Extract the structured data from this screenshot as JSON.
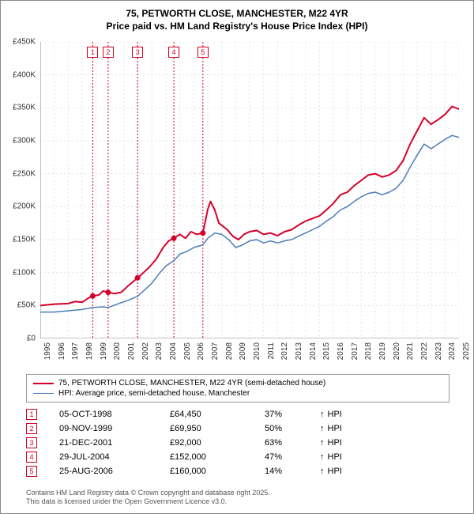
{
  "title_line1": "75, PETWORTH CLOSE, MANCHESTER, M22 4YR",
  "title_line2": "Price paid vs. HM Land Registry's House Price Index (HPI)",
  "chart": {
    "type": "line",
    "background_color": "#ffffff",
    "grid_color": "#e3e3e3",
    "grid_dash": "2,3",
    "axis_color": "#808080",
    "ylim": [
      0,
      450000
    ],
    "ytick_step": 50000,
    "y_ticks": [
      "£0",
      "£50K",
      "£100K",
      "£150K",
      "£200K",
      "£250K",
      "£300K",
      "£350K",
      "£400K",
      "£450K"
    ],
    "xlim": [
      1995,
      2025
    ],
    "x_ticks": [
      "1995",
      "1996",
      "1997",
      "1998",
      "1999",
      "2000",
      "2001",
      "2002",
      "2003",
      "2004",
      "2005",
      "2006",
      "2007",
      "2008",
      "2009",
      "2010",
      "2011",
      "2012",
      "2013",
      "2014",
      "2015",
      "2016",
      "2017",
      "2018",
      "2019",
      "2020",
      "2021",
      "2022",
      "2023",
      "2024",
      "2025"
    ],
    "marker_vlines": [
      {
        "year": 1998.76,
        "label": "1"
      },
      {
        "year": 1999.86,
        "label": "2"
      },
      {
        "year": 2001.97,
        "label": "3"
      },
      {
        "year": 2004.57,
        "label": "4"
      },
      {
        "year": 2006.65,
        "label": "5"
      }
    ],
    "marker_vline_color": "#cc0033",
    "series": [
      {
        "name": "price_paid",
        "color": "#d4002a",
        "width": 2,
        "points": [
          [
            1995.0,
            50
          ],
          [
            1996.0,
            52
          ],
          [
            1997.0,
            53
          ],
          [
            1997.5,
            56
          ],
          [
            1998.0,
            55
          ],
          [
            1998.5,
            62
          ],
          [
            1998.76,
            64.45
          ],
          [
            1999.2,
            66
          ],
          [
            1999.5,
            72
          ],
          [
            1999.86,
            69.95
          ],
          [
            2000.3,
            68
          ],
          [
            2000.8,
            70
          ],
          [
            2001.3,
            80
          ],
          [
            2001.97,
            92
          ],
          [
            2002.3,
            98
          ],
          [
            2002.8,
            108
          ],
          [
            2003.3,
            120
          ],
          [
            2003.8,
            138
          ],
          [
            2004.2,
            148
          ],
          [
            2004.57,
            152
          ],
          [
            2005.0,
            158
          ],
          [
            2005.4,
            152
          ],
          [
            2005.8,
            162
          ],
          [
            2006.2,
            158
          ],
          [
            2006.65,
            160
          ],
          [
            2007.0,
            196
          ],
          [
            2007.2,
            208
          ],
          [
            2007.5,
            195
          ],
          [
            2007.8,
            175
          ],
          [
            2008.1,
            170
          ],
          [
            2008.4,
            165
          ],
          [
            2008.8,
            155
          ],
          [
            2009.2,
            150
          ],
          [
            2009.6,
            158
          ],
          [
            2010.0,
            162
          ],
          [
            2010.5,
            164
          ],
          [
            2011.0,
            158
          ],
          [
            2011.5,
            160
          ],
          [
            2012.0,
            156
          ],
          [
            2012.5,
            162
          ],
          [
            2013.0,
            165
          ],
          [
            2013.5,
            172
          ],
          [
            2014.0,
            178
          ],
          [
            2014.5,
            182
          ],
          [
            2015.0,
            186
          ],
          [
            2015.5,
            195
          ],
          [
            2016.0,
            205
          ],
          [
            2016.5,
            218
          ],
          [
            2017.0,
            222
          ],
          [
            2017.5,
            232
          ],
          [
            2018.0,
            240
          ],
          [
            2018.5,
            248
          ],
          [
            2019.0,
            250
          ],
          [
            2019.5,
            245
          ],
          [
            2020.0,
            248
          ],
          [
            2020.5,
            255
          ],
          [
            2021.0,
            270
          ],
          [
            2021.5,
            295
          ],
          [
            2022.0,
            315
          ],
          [
            2022.5,
            335
          ],
          [
            2023.0,
            325
          ],
          [
            2023.5,
            332
          ],
          [
            2024.0,
            340
          ],
          [
            2024.5,
            352
          ],
          [
            2025.0,
            348
          ],
          [
            2025.3,
            358
          ]
        ]
      },
      {
        "name": "hpi",
        "color": "#4c7db8",
        "width": 1.5,
        "points": [
          [
            1995.0,
            40
          ],
          [
            1996.0,
            40
          ],
          [
            1997.0,
            42
          ],
          [
            1998.0,
            44
          ],
          [
            1998.76,
            47
          ],
          [
            1999.5,
            48
          ],
          [
            1999.86,
            47
          ],
          [
            2000.5,
            52
          ],
          [
            2001.3,
            58
          ],
          [
            2001.97,
            64
          ],
          [
            2002.5,
            74
          ],
          [
            2003.0,
            84
          ],
          [
            2003.5,
            98
          ],
          [
            2004.0,
            110
          ],
          [
            2004.57,
            118
          ],
          [
            2005.0,
            128
          ],
          [
            2005.5,
            132
          ],
          [
            2006.0,
            138
          ],
          [
            2006.65,
            142
          ],
          [
            2007.0,
            152
          ],
          [
            2007.5,
            160
          ],
          [
            2008.0,
            158
          ],
          [
            2008.5,
            150
          ],
          [
            2009.0,
            138
          ],
          [
            2009.5,
            142
          ],
          [
            2010.0,
            148
          ],
          [
            2010.5,
            150
          ],
          [
            2011.0,
            145
          ],
          [
            2011.5,
            148
          ],
          [
            2012.0,
            145
          ],
          [
            2012.5,
            148
          ],
          [
            2013.0,
            150
          ],
          [
            2013.5,
            155
          ],
          [
            2014.0,
            160
          ],
          [
            2014.5,
            165
          ],
          [
            2015.0,
            170
          ],
          [
            2015.5,
            178
          ],
          [
            2016.0,
            185
          ],
          [
            2016.5,
            195
          ],
          [
            2017.0,
            200
          ],
          [
            2017.5,
            208
          ],
          [
            2018.0,
            215
          ],
          [
            2018.5,
            220
          ],
          [
            2019.0,
            222
          ],
          [
            2019.5,
            218
          ],
          [
            2020.0,
            222
          ],
          [
            2020.5,
            228
          ],
          [
            2021.0,
            240
          ],
          [
            2021.5,
            260
          ],
          [
            2022.0,
            278
          ],
          [
            2022.5,
            295
          ],
          [
            2023.0,
            288
          ],
          [
            2023.5,
            295
          ],
          [
            2024.0,
            302
          ],
          [
            2024.5,
            308
          ],
          [
            2025.0,
            305
          ],
          [
            2025.3,
            312
          ]
        ]
      }
    ],
    "sale_markers": [
      {
        "year": 1998.76,
        "value": 64.45
      },
      {
        "year": 1999.86,
        "value": 69.95
      },
      {
        "year": 2001.97,
        "value": 92
      },
      {
        "year": 2004.57,
        "value": 152
      },
      {
        "year": 2006.65,
        "value": 160
      }
    ],
    "sale_marker_color": "#d4002a",
    "sale_marker_radius": 3.5
  },
  "legend": {
    "items": [
      {
        "color": "#d4002a",
        "width": 2,
        "label": "75, PETWORTH CLOSE, MANCHESTER, M22 4YR (semi-detached house)"
      },
      {
        "color": "#4c7db8",
        "width": 1.5,
        "label": "HPI: Average price, semi-detached house, Manchester"
      }
    ]
  },
  "table": {
    "marker_border_color": "#d00020",
    "arrow": "↑",
    "hpi_label": "HPI",
    "rows": [
      {
        "n": "1",
        "date": "05-OCT-1998",
        "price": "£64,450",
        "pct": "37%"
      },
      {
        "n": "2",
        "date": "09-NOV-1999",
        "price": "£69,950",
        "pct": "50%"
      },
      {
        "n": "3",
        "date": "21-DEC-2001",
        "price": "£92,000",
        "pct": "63%"
      },
      {
        "n": "4",
        "date": "29-JUL-2004",
        "price": "£152,000",
        "pct": "47%"
      },
      {
        "n": "5",
        "date": "25-AUG-2006",
        "price": "£160,000",
        "pct": "14%"
      }
    ]
  },
  "footer_line1": "Contains HM Land Registry data © Crown copyright and database right 2025.",
  "footer_line2": "This data is licensed under the Open Government Licence v3.0."
}
